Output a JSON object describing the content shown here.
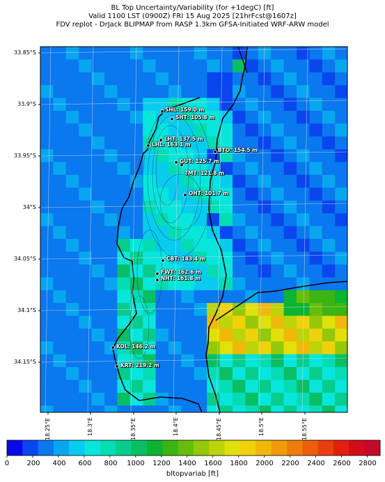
{
  "title": {
    "line1": "BL Top Uncertainty/Variability (for +1degC) [ft]",
    "line2": "Valid 1100 LST (0900Z) FRI 15 Aug 2025 [21hrFcst@1607z]",
    "line3": "FDV replot - DrJack BLIPMAP from RASP 1.3km GFSA-Initiated WRF-ARW model"
  },
  "lat_labels": [
    "33.85°S",
    "33.9°S",
    "33.95°S",
    "34°S",
    "34.05°S",
    "34.1°S",
    "34.15°S"
  ],
  "lon_labels": [
    "18.25°E",
    "18.3°E",
    "18.35°E",
    "18.4°E",
    "18.45°E",
    "18.5°E",
    "18.55°E"
  ],
  "stations": [
    {
      "name": "SHL: 159.0 m",
      "marker": "dot"
    },
    {
      "name": "SHT: 105.8 m",
      "marker": "dot"
    },
    {
      "name": "LHT: 137.5 m",
      "marker": "dot"
    },
    {
      "name": "LHL: 163.1 m",
      "marker": "dot"
    },
    {
      "name": "BTO: 154.5 m",
      "marker": "dot"
    },
    {
      "name": "GUT: 125.7 m",
      "marker": "dot"
    },
    {
      "name": "TMT: 121.8 m",
      "marker": "dot"
    },
    {
      "name": "OHT: 101.7 m",
      "marker": "dot"
    },
    {
      "name": "CBT: 143.4 m",
      "marker": "dot"
    },
    {
      "name": "FWT: 162.6 m",
      "marker": "dot"
    },
    {
      "name": "NHT: 161.8 m",
      "marker": "dot"
    },
    {
      "name": "KOL: 146.2 m",
      "marker": "dot"
    },
    {
      "name": "KRT: 219.2 m",
      "marker": "dot"
    }
  ],
  "colorbar": {
    "ticks": [
      "0",
      "200",
      "400",
      "600",
      "800",
      "1000",
      "1200",
      "1400",
      "1600",
      "1800",
      "2000",
      "2200",
      "2400",
      "2600",
      "2800"
    ],
    "label": "bltopvariab [ft]",
    "colors": [
      "#0a0ae8",
      "#0a46ee",
      "#0a78ee",
      "#08a6f0",
      "#08ccee",
      "#08e6dc",
      "#06dcb4",
      "#08cc8c",
      "#0abe64",
      "#0cb432",
      "#3cb414",
      "#66be0a",
      "#94c80a",
      "#bcd40a",
      "#e0e00a",
      "#f0d20a",
      "#f0b80a",
      "#f09c0a",
      "#ee7e0a",
      "#ec5e0a",
      "#e8400c",
      "#e2200e",
      "#d40c18",
      "#c40a2a"
    ]
  }
}
